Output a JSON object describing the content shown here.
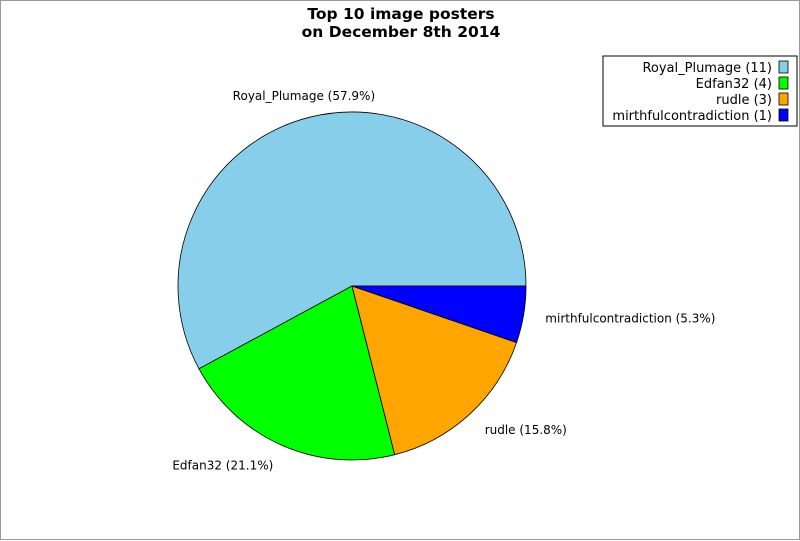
{
  "chart_data": {
    "type": "pie",
    "title": "Top 10 image posters",
    "subtitle": "on December 8th 2014",
    "slices": [
      {
        "name": "Royal_Plumage",
        "value": 11,
        "percent_label": "Royal_Plumage (57.9%)",
        "legend_label": "Royal_Plumage (11)",
        "color": "#87ceeb"
      },
      {
        "name": "Edfan32",
        "value": 4,
        "percent_label": "Edfan32 (21.1%)",
        "legend_label": "Edfan32 (4)",
        "color": "#00ff00"
      },
      {
        "name": "rudle",
        "value": 3,
        "percent_label": "rudle (15.8%)",
        "legend_label": "rudle (3)",
        "color": "#ffa500"
      },
      {
        "name": "mirthfulcontradiction",
        "value": 1,
        "percent_label": "mirthfulcontradiction (5.3%)",
        "legend_label": "mirthfulcontradiction (1)",
        "color": "#0000ff"
      }
    ],
    "legend_position": "top-right",
    "start_angle": "3 o'clock",
    "direction": "counterclockwise"
  }
}
